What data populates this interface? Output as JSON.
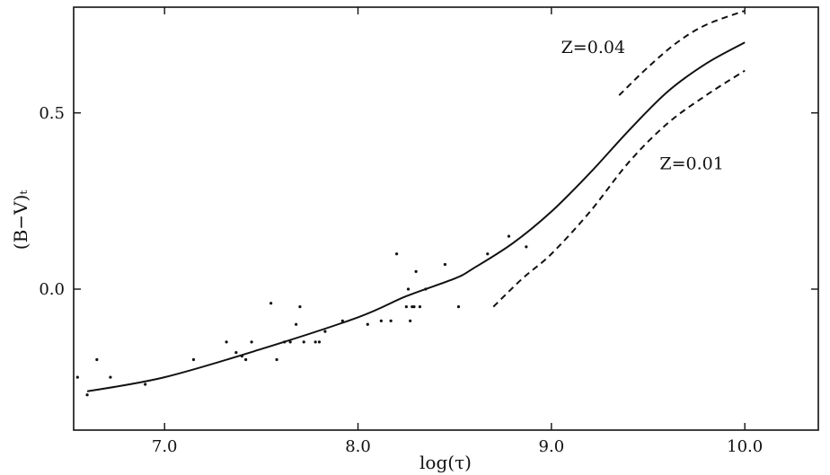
{
  "chart_data": {
    "type": "scatter",
    "xlabel": "log(τ)",
    "ylabel": "(B−V)ₜ",
    "xlim": [
      6.53,
      10.38
    ],
    "ylim": [
      -0.4,
      0.8
    ],
    "xticks": [
      {
        "value": 7.0,
        "label": "7.0"
      },
      {
        "value": 8.0,
        "label": "8.0"
      },
      {
        "value": 9.0,
        "label": "9.0"
      },
      {
        "value": 10.0,
        "label": "10.0"
      }
    ],
    "yticks": [
      {
        "value": 0.0,
        "label": "0.0"
      },
      {
        "value": 0.5,
        "label": "0.5"
      }
    ],
    "grid": false,
    "series": [
      {
        "kind": "points",
        "x": [
          6.55,
          6.6,
          6.65,
          6.72,
          6.9,
          7.15,
          7.32,
          7.37,
          7.4,
          7.42,
          7.45,
          7.55,
          7.58,
          7.62,
          7.65,
          7.68,
          7.7,
          7.72,
          7.78,
          7.8,
          7.83,
          7.92,
          8.05,
          8.12,
          8.17,
          8.2,
          8.25,
          8.26,
          8.27,
          8.28,
          8.29,
          8.3,
          8.32,
          8.35,
          8.45,
          8.52,
          8.67,
          8.78,
          8.87
        ],
        "y": [
          -0.25,
          -0.3,
          -0.2,
          -0.25,
          -0.27,
          -0.2,
          -0.15,
          -0.18,
          -0.19,
          -0.2,
          -0.15,
          -0.04,
          -0.2,
          -0.15,
          -0.15,
          -0.1,
          -0.05,
          -0.15,
          -0.15,
          -0.15,
          -0.12,
          -0.09,
          -0.1,
          -0.09,
          -0.09,
          0.1,
          -0.05,
          0.0,
          -0.09,
          -0.05,
          -0.05,
          0.05,
          -0.05,
          0.0,
          0.07,
          -0.05,
          0.1,
          0.15,
          0.12
        ]
      },
      {
        "kind": "solid",
        "x": [
          6.6,
          7.0,
          7.5,
          8.0,
          8.25,
          8.5,
          8.6,
          8.8,
          9.0,
          9.2,
          9.4,
          9.6,
          9.8,
          10.0
        ],
        "y": [
          -0.29,
          -0.25,
          -0.17,
          -0.08,
          -0.02,
          0.03,
          0.06,
          0.13,
          0.22,
          0.33,
          0.45,
          0.56,
          0.64,
          0.7
        ]
      },
      {
        "kind": "dashed",
        "x": [
          9.35,
          9.5,
          9.65,
          9.8,
          10.0
        ],
        "y": [
          0.55,
          0.63,
          0.7,
          0.75,
          0.79
        ]
      },
      {
        "kind": "dashed",
        "x": [
          8.7,
          8.85,
          9.0,
          9.2,
          9.4,
          9.6,
          9.8,
          10.0
        ],
        "y": [
          -0.05,
          0.03,
          0.1,
          0.22,
          0.36,
          0.47,
          0.55,
          0.62
        ]
      }
    ],
    "annotations": [
      {
        "text": "Z=0.04",
        "x": 9.05,
        "y": 0.67
      },
      {
        "text": "Z=0.01",
        "x": 9.56,
        "y": 0.34
      }
    ]
  }
}
